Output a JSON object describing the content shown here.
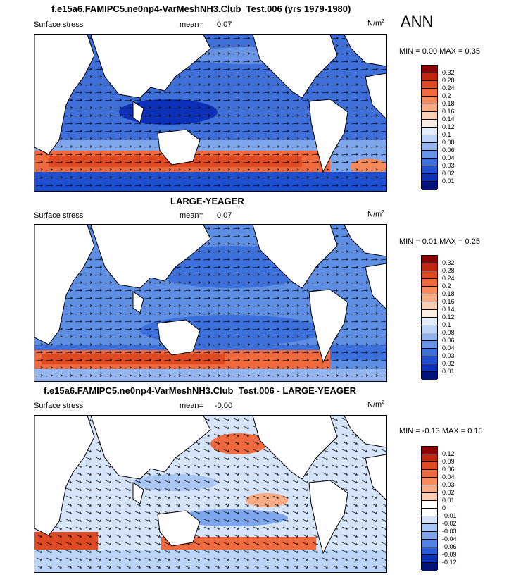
{
  "season": "ANN",
  "panels": [
    {
      "title": "f.e15a6.FAMIPC5.ne0np4-VarMeshNH3.Club_Test.006 (yrs 1979-1980)",
      "variable": "Surface stress",
      "mean_label": "mean=",
      "mean_value": "0.07",
      "units": "N/m",
      "units_exp": "2",
      "minmax": "MIN =   0.00 MAX =   0.35",
      "colorbar_labels": [
        "0.32",
        "0.28",
        "0.24",
        "0.2",
        "0.18",
        "0.16",
        "0.14",
        "0.12",
        "0.1",
        "0.08",
        "0.06",
        "0.04",
        "0.03",
        "0.02",
        "0.01"
      ],
      "colorbar_colors": [
        "#8b0000",
        "#c1260f",
        "#de4a24",
        "#ef6a3f",
        "#f58a5c",
        "#f9ab83",
        "#fbcdb2",
        "#fdeee5",
        "#e3edfb",
        "#bcd4f7",
        "#93b6f0",
        "#6794e6",
        "#3c70dc",
        "#1d4fd0",
        "#0b31bb",
        "#01137a"
      ]
    },
    {
      "title": "LARGE-YEAGER",
      "variable": "Surface stress",
      "mean_label": "mean=",
      "mean_value": "0.07",
      "units": "N/m",
      "units_exp": "2",
      "minmax": "MIN =   0.01 MAX =   0.25",
      "colorbar_labels": [
        "0.32",
        "0.28",
        "0.24",
        "0.2",
        "0.18",
        "0.16",
        "0.14",
        "0.12",
        "0.1",
        "0.08",
        "0.06",
        "0.04",
        "0.03",
        "0.02",
        "0.01"
      ],
      "colorbar_colors": [
        "#8b0000",
        "#c1260f",
        "#de4a24",
        "#ef6a3f",
        "#f58a5c",
        "#f9ab83",
        "#fbcdb2",
        "#fdeee5",
        "#e3edfb",
        "#bcd4f7",
        "#93b6f0",
        "#6794e6",
        "#3c70dc",
        "#1d4fd0",
        "#0b31bb",
        "#01137a"
      ]
    },
    {
      "title": "f.e15a6.FAMIPC5.ne0np4-VarMeshNH3.Club_Test.006 - LARGE-YEAGER",
      "variable": "Surface stress",
      "mean_label": "mean=",
      "mean_value": "-0.00",
      "units": "N/m",
      "units_exp": "2",
      "minmax": "MIN =  -0.13 MAX =   0.15",
      "colorbar_labels": [
        "0.12",
        "0.09",
        "0.06",
        "0.04",
        "0.03",
        "0.02",
        "0.01",
        "0",
        "-0.01",
        "-0.02",
        "-0.03",
        "-0.04",
        "-0.06",
        "-0.09",
        "-0.12"
      ],
      "colorbar_colors": [
        "#8b0000",
        "#c1260f",
        "#de4a24",
        "#ef6a3f",
        "#f58a5c",
        "#f9ab83",
        "#fbcdb2",
        "#ffffff",
        "#ffffff",
        "#d6e4fa",
        "#aac6f3",
        "#7ea6ec",
        "#4f83e2",
        "#2a5ed6",
        "#0d33b5",
        "#01137a"
      ]
    }
  ]
}
